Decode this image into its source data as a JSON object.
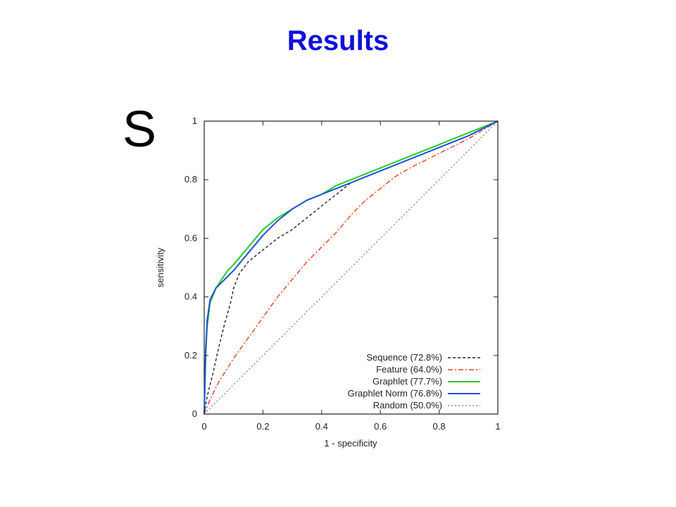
{
  "slide": {
    "title": "Results",
    "panel_label": "S"
  },
  "chart_data": {
    "type": "line",
    "title": "",
    "xlabel": "1 - specificity",
    "ylabel": "sensitivity",
    "xlim": [
      0,
      1
    ],
    "ylim": [
      0,
      1
    ],
    "xticks": [
      "0",
      "0.2",
      "0.4",
      "0.6",
      "0.8",
      "1"
    ],
    "yticks": [
      "0",
      "0.2",
      "0.4",
      "0.6",
      "0.8",
      "1"
    ],
    "grid": false,
    "legend_position": "bottom-right",
    "series": [
      {
        "name": "Sequence (72.8%)",
        "color": "#222222",
        "dash": "dashed",
        "x": [
          0,
          0.01,
          0.03,
          0.05,
          0.07,
          0.09,
          0.1,
          0.12,
          0.15,
          0.2,
          0.25,
          0.3,
          0.35,
          0.4,
          0.45,
          0.5,
          0.55,
          0.6,
          0.7,
          0.8,
          0.9,
          1.0
        ],
        "y": [
          0,
          0.06,
          0.14,
          0.23,
          0.31,
          0.38,
          0.43,
          0.48,
          0.52,
          0.56,
          0.6,
          0.63,
          0.67,
          0.71,
          0.75,
          0.79,
          0.81,
          0.83,
          0.87,
          0.91,
          0.95,
          1.0
        ]
      },
      {
        "name": "Feature (64.0%)",
        "color": "#e8401c",
        "dash": "dash-dot",
        "x": [
          0,
          0.02,
          0.05,
          0.1,
          0.15,
          0.2,
          0.25,
          0.3,
          0.35,
          0.4,
          0.45,
          0.5,
          0.55,
          0.6,
          0.65,
          0.7,
          0.8,
          0.9,
          1.0
        ],
        "y": [
          0,
          0.05,
          0.11,
          0.19,
          0.26,
          0.33,
          0.4,
          0.46,
          0.52,
          0.57,
          0.62,
          0.68,
          0.73,
          0.77,
          0.81,
          0.84,
          0.89,
          0.94,
          1.0
        ]
      },
      {
        "name": "Graphlet (77.7%)",
        "color": "#22cc22",
        "dash": "solid",
        "x": [
          0,
          0.005,
          0.01,
          0.02,
          0.04,
          0.06,
          0.08,
          0.1,
          0.15,
          0.2,
          0.25,
          0.3,
          0.35,
          0.4,
          0.45,
          0.5,
          0.6,
          0.7,
          0.8,
          0.9,
          1.0
        ],
        "y": [
          0,
          0.2,
          0.3,
          0.38,
          0.43,
          0.46,
          0.49,
          0.51,
          0.57,
          0.63,
          0.67,
          0.7,
          0.73,
          0.75,
          0.78,
          0.8,
          0.84,
          0.88,
          0.92,
          0.96,
          1.0
        ]
      },
      {
        "name": "Graphlet Norm (76.8%)",
        "color": "#1f4fd8",
        "dash": "solid",
        "x": [
          0,
          0.005,
          0.01,
          0.02,
          0.04,
          0.06,
          0.08,
          0.1,
          0.15,
          0.2,
          0.25,
          0.3,
          0.35,
          0.4,
          0.45,
          0.5,
          0.6,
          0.7,
          0.8,
          0.9,
          1.0
        ],
        "y": [
          0,
          0.22,
          0.32,
          0.39,
          0.43,
          0.45,
          0.47,
          0.49,
          0.55,
          0.61,
          0.66,
          0.7,
          0.73,
          0.75,
          0.77,
          0.79,
          0.83,
          0.87,
          0.91,
          0.95,
          1.0
        ]
      },
      {
        "name": "Random (50.0%)",
        "color": "#888888",
        "dash": "dotted",
        "x": [
          0,
          1
        ],
        "y": [
          0,
          1
        ]
      }
    ]
  }
}
